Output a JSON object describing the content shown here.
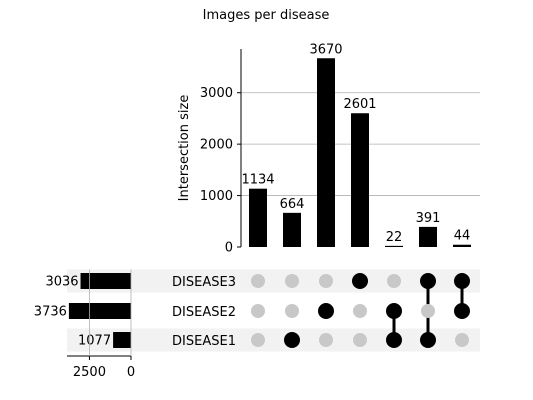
{
  "chart_data": {
    "type": "upset",
    "title": "Images per disease",
    "intersection_axis": {
      "label": "Intersection size",
      "ylim": [
        0,
        3850
      ],
      "ticks": [
        0,
        1000,
        2000,
        3000
      ],
      "grid": true
    },
    "set_size_axis": {
      "xlim": [
        3850,
        0
      ],
      "ticks": [
        2500,
        0
      ]
    },
    "sets": [
      {
        "name": "DISEASE3",
        "size": 3036
      },
      {
        "name": "DISEASE2",
        "size": 3736
      },
      {
        "name": "DISEASE1",
        "size": 1077
      }
    ],
    "intersections": [
      {
        "members": [
          "DISEASE3",
          "DISEASE2"
        ],
        "value": 1134
      },
      {
        "members": [
          "DISEASE3",
          "DISEASE2"
        ],
        "value": 664
      },
      {
        "members": [
          "DISEASE3",
          "DISEASE1"
        ],
        "value": 3670
      },
      {
        "members": [
          "DISEASE2",
          "DISEASE1"
        ],
        "value": 2601
      },
      {
        "members": [
          "DISEASE3"
        ],
        "value": 22
      },
      {
        "members": [
          "DISEASE2"
        ],
        "value": 391
      },
      {
        "members": [
          "DISEASE1"
        ],
        "value": 44
      }
    ],
    "membership_matrix": [
      [
        false,
        false,
        false,
        true,
        false,
        true,
        true
      ],
      [
        false,
        false,
        true,
        false,
        true,
        false,
        true
      ],
      [
        false,
        true,
        false,
        false,
        true,
        true,
        false
      ]
    ],
    "colors": {
      "bar": "#000000",
      "active_dot": "#000000",
      "inactive_dot": "#c8c8c8",
      "grid": "#b0b0b0",
      "row_shade": "#f2f2f2"
    }
  }
}
